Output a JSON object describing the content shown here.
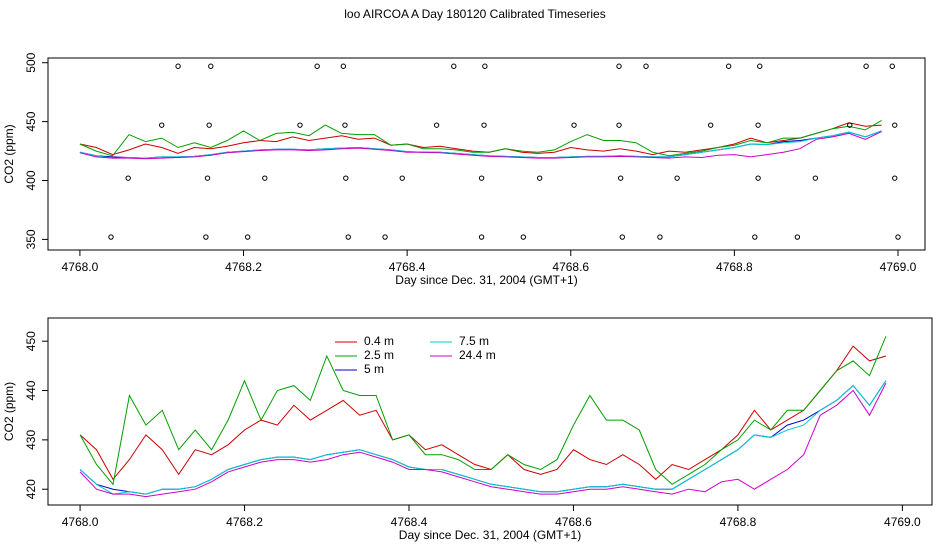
{
  "chart_data": [
    {
      "type": "line",
      "title": "loo AIRCOA A  Day 180120  Calibrated Timeseries",
      "xlabel": "Day since Dec. 31, 2004 (GMT+1)",
      "ylabel": "CO2 (ppm)",
      "xlim": [
        4767.961,
        4769.033
      ],
      "ylim": [
        341,
        504
      ],
      "xticks": [
        {
          "value": 4768.0,
          "label": "4768.0"
        },
        {
          "value": 4768.2,
          "label": "4768.2"
        },
        {
          "value": 4768.4,
          "label": "4768.4"
        },
        {
          "value": 4768.6,
          "label": "4768.6"
        },
        {
          "value": 4768.8,
          "label": "4768.8"
        },
        {
          "value": 4769.0,
          "label": "4769.0"
        }
      ],
      "yticks": [
        350,
        400,
        450,
        500
      ],
      "x": [
        4768.0,
        4768.02,
        4768.04,
        4768.06,
        4768.08,
        4768.1,
        4768.12,
        4768.14,
        4768.16,
        4768.18,
        4768.2,
        4768.22,
        4768.24,
        4768.26,
        4768.28,
        4768.3,
        4768.32,
        4768.34,
        4768.36,
        4768.38,
        4768.4,
        4768.42,
        4768.44,
        4768.46,
        4768.48,
        4768.5,
        4768.52,
        4768.54,
        4768.56,
        4768.58,
        4768.6,
        4768.62,
        4768.64,
        4768.66,
        4768.68,
        4768.7,
        4768.72,
        4768.74,
        4768.76,
        4768.78,
        4768.8,
        4768.82,
        4768.84,
        4768.86,
        4768.88,
        4768.9,
        4768.92,
        4768.94,
        4768.96,
        4768.98
      ],
      "series": [
        {
          "color": "#cc0000",
          "values": [
            431,
            428,
            422,
            426,
            431,
            428,
            423,
            428,
            427,
            429,
            432,
            434,
            433,
            437,
            434,
            436,
            438,
            435,
            436,
            430,
            431,
            428,
            429,
            427,
            425,
            424,
            427,
            424,
            423,
            424,
            428,
            426,
            425,
            427,
            425,
            422,
            425,
            424,
            426,
            428,
            431,
            436,
            432,
            434,
            436,
            440,
            444,
            449,
            446,
            447
          ]
        },
        {
          "color": "#00a000",
          "values": [
            431,
            425,
            421,
            439,
            433,
            436,
            428,
            432,
            428,
            434,
            442,
            434,
            440,
            441,
            438,
            447,
            440,
            439,
            439,
            430,
            431,
            427,
            427,
            426,
            424,
            424,
            427,
            425,
            424,
            426,
            433,
            439,
            434,
            434,
            432,
            424,
            421,
            423,
            425,
            428,
            430,
            434,
            432,
            436,
            436,
            440,
            444,
            446,
            443,
            451
          ]
        },
        {
          "color": "#0000cc",
          "values": [
            424,
            421,
            420,
            419.5,
            419,
            420,
            420,
            420.5,
            422,
            424,
            425,
            426,
            426.5,
            426.5,
            426,
            427,
            427.5,
            428,
            427,
            426,
            424.5,
            424,
            424,
            423,
            422,
            421,
            420.5,
            420,
            419.5,
            419.5,
            420,
            420.5,
            420.5,
            421,
            420.5,
            420,
            420,
            422,
            424,
            426,
            428,
            431,
            430.5,
            433,
            434,
            436,
            438,
            441,
            437,
            442
          ]
        },
        {
          "color": "#00cccc",
          "values": [
            424,
            421,
            419,
            419.5,
            419,
            420,
            420,
            420.5,
            422,
            424,
            425,
            426,
            426.5,
            426.5,
            426,
            427,
            427.5,
            428,
            427,
            426,
            424.5,
            424,
            424,
            423,
            422,
            421,
            420.5,
            420,
            419.5,
            419.5,
            420,
            420.5,
            420.5,
            421,
            420.5,
            420,
            420,
            422,
            424,
            426,
            428,
            431,
            430.5,
            432,
            433,
            436,
            438,
            441,
            437,
            442
          ]
        },
        {
          "color": "#cc00cc",
          "values": [
            423.5,
            420,
            419,
            419,
            418.5,
            419,
            419.5,
            420,
            421.5,
            423.5,
            424.5,
            425.5,
            426,
            426,
            425.5,
            426,
            427,
            427.5,
            426.5,
            425.5,
            424,
            424,
            423.5,
            422.5,
            421.5,
            420.5,
            420,
            419.5,
            419,
            419,
            419.5,
            420,
            420,
            420.5,
            420,
            419.5,
            419,
            420,
            419.5,
            421.5,
            422,
            420,
            422,
            424,
            427,
            435,
            437,
            440,
            435,
            441.5
          ]
        },
        {
          "type": "scatter",
          "color": "#000000",
          "x": [
            4768.12,
            4768.16,
            4768.29,
            4768.322,
            4768.457,
            4768.495,
            4768.659,
            4768.692,
            4768.793,
            4768.831,
            4768.961,
            4768.993,
            4768.1,
            4768.158,
            4768.269,
            4768.324,
            4768.436,
            4768.494,
            4768.604,
            4768.659,
            4768.771,
            4768.829,
            4768.941,
            4768.996,
            4768.059,
            4768.156,
            4768.226,
            4768.325,
            4768.394,
            4768.491,
            4768.562,
            4768.661,
            4768.73,
            4768.829,
            4768.899,
            4768.996,
            4768.038,
            4768.154,
            4768.205,
            4768.328,
            4768.373,
            4768.491,
            4768.542,
            4768.663,
            4768.709,
            4768.825,
            4768.877,
            4769.0
          ],
          "values": [
            497,
            497,
            497,
            497,
            497,
            497,
            497,
            497,
            497,
            497,
            497,
            497,
            447,
            447,
            447,
            447,
            447,
            447,
            447,
            447,
            447,
            447,
            447,
            447,
            402,
            402,
            402,
            402,
            402,
            402,
            402,
            402,
            402,
            402,
            402,
            402,
            352,
            352,
            352,
            352,
            352,
            352,
            352,
            352,
            352,
            352,
            352,
            352
          ]
        }
      ]
    },
    {
      "type": "line",
      "xlabel": "Day since Dec. 31, 2004 (GMT+1)",
      "ylabel": "CO2 (ppm)",
      "xlim": [
        4767.961,
        4769.036
      ],
      "ylim": [
        416.8,
        454.7
      ],
      "xticks": [
        {
          "value": 4768.0,
          "label": "4768.0"
        },
        {
          "value": 4768.2,
          "label": "4768.2"
        },
        {
          "value": 4768.4,
          "label": "4768.4"
        },
        {
          "value": 4768.6,
          "label": "4768.6"
        },
        {
          "value": 4768.8,
          "label": "4768.8"
        },
        {
          "value": 4769.0,
          "label": "4769.0"
        }
      ],
      "yticks": [
        420,
        430,
        440,
        450
      ],
      "x": [
        4768.0,
        4768.02,
        4768.04,
        4768.06,
        4768.08,
        4768.1,
        4768.12,
        4768.14,
        4768.16,
        4768.18,
        4768.2,
        4768.22,
        4768.24,
        4768.26,
        4768.28,
        4768.3,
        4768.32,
        4768.34,
        4768.36,
        4768.38,
        4768.4,
        4768.42,
        4768.44,
        4768.46,
        4768.48,
        4768.5,
        4768.52,
        4768.54,
        4768.56,
        4768.58,
        4768.6,
        4768.62,
        4768.64,
        4768.66,
        4768.68,
        4768.7,
        4768.72,
        4768.74,
        4768.76,
        4768.78,
        4768.8,
        4768.82,
        4768.84,
        4768.86,
        4768.88,
        4768.9,
        4768.92,
        4768.94,
        4768.96,
        4768.98
      ],
      "series": [
        {
          "name": "0.4 m",
          "color": "#cc0000",
          "values": [
            431,
            428,
            422,
            426,
            431,
            428,
            423,
            428,
            427,
            429,
            432,
            434,
            433,
            437,
            434,
            436,
            438,
            435,
            436,
            430,
            431,
            428,
            429,
            427,
            425,
            424,
            427,
            424,
            423,
            424,
            428,
            426,
            425,
            427,
            425,
            422,
            425,
            424,
            426,
            428,
            431,
            436,
            432,
            434,
            436,
            440,
            444,
            449,
            446,
            447
          ]
        },
        {
          "name": "2.5 m",
          "color": "#00a000",
          "values": [
            431,
            425,
            421,
            439,
            433,
            436,
            428,
            432,
            428,
            434,
            442,
            434,
            440,
            441,
            438,
            447,
            440,
            439,
            439,
            430,
            431,
            427,
            427,
            426,
            424,
            424,
            427,
            425,
            424,
            426,
            433,
            439,
            434,
            434,
            432,
            424,
            421,
            423,
            425,
            428,
            430,
            434,
            432,
            436,
            436,
            440,
            444,
            446,
            443,
            451
          ]
        },
        {
          "name": "5 m",
          "color": "#0000cc",
          "values": [
            424,
            421,
            420,
            419.5,
            419,
            420,
            420,
            420.5,
            422,
            424,
            425,
            426,
            426.5,
            426.5,
            426,
            427,
            427.5,
            428,
            427,
            426,
            424.5,
            424,
            424,
            423,
            422,
            421,
            420.5,
            420,
            419.5,
            419.5,
            420,
            420.5,
            420.5,
            421,
            420.5,
            420,
            420,
            422,
            424,
            426,
            428,
            431,
            430.5,
            433,
            434,
            436,
            438,
            441,
            437,
            442
          ]
        },
        {
          "name": "7.5 m",
          "color": "#00cccc",
          "values": [
            424,
            421,
            419,
            419.5,
            419,
            420,
            420,
            420.5,
            422,
            424,
            425,
            426,
            426.5,
            426.5,
            426,
            427,
            427.5,
            428,
            427,
            426,
            424.5,
            424,
            424,
            423,
            422,
            421,
            420.5,
            420,
            419.5,
            419.5,
            420,
            420.5,
            420.5,
            421,
            420.5,
            420,
            420,
            422,
            424,
            426,
            428,
            431,
            430.5,
            432,
            433,
            436,
            438,
            441,
            437,
            442
          ]
        },
        {
          "name": "24.4 m",
          "color": "#cc00cc",
          "values": [
            423.5,
            420,
            419,
            419,
            418.5,
            419,
            419.5,
            420,
            421.5,
            423.5,
            424.5,
            425.5,
            426,
            426,
            425.5,
            426,
            427,
            427.5,
            426.5,
            425.5,
            424,
            424,
            423.5,
            422.5,
            421.5,
            420.5,
            420,
            419.5,
            419,
            419,
            419.5,
            420,
            420,
            420.5,
            420,
            419.5,
            419,
            420,
            419.5,
            421.5,
            422,
            420,
            422,
            424,
            427,
            435,
            437,
            440,
            435,
            441.5
          ]
        }
      ]
    }
  ]
}
